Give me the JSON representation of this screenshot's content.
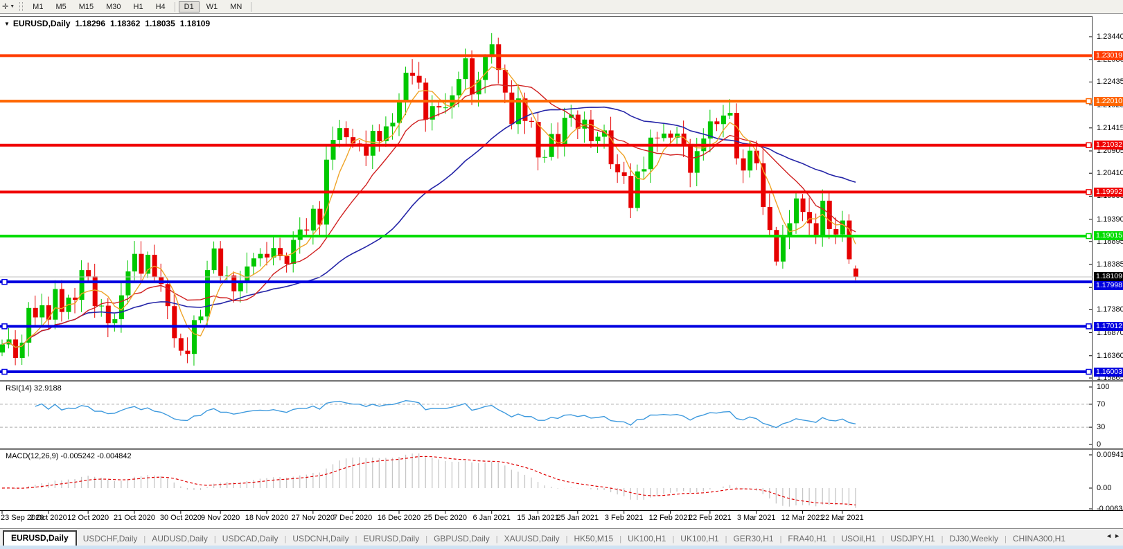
{
  "toolbar": {
    "cursor_tool": "✛",
    "timeframe_groups": [
      [
        "M1",
        "M5",
        "M15",
        "M30",
        "H1",
        "H4"
      ],
      [
        "D1",
        "W1",
        "MN"
      ]
    ],
    "selected_timeframe": "D1"
  },
  "title": {
    "dropdown": "▼",
    "symbol": "EURUSD,Daily",
    "open": "1.18296",
    "high": "1.18362",
    "low": "1.18035",
    "close": "1.18109"
  },
  "price_axis": {
    "ticks": [
      "1.23440",
      "1.22930",
      "1.22435",
      "1.21925",
      "1.21415",
      "1.20905",
      "1.20410",
      "1.19900",
      "1.19390",
      "1.18895",
      "1.18385",
      "1.17875",
      "1.17380",
      "1.16870",
      "1.16360",
      "1.15865"
    ]
  },
  "current_price": {
    "value": "1.18109",
    "line_color": "#C0C0C0",
    "label_bg": "#000000"
  },
  "hlines": [
    {
      "price": "1.23019",
      "color": "#FF3C00",
      "anchors": []
    },
    {
      "price": "1.22010",
      "color": "#FF6600",
      "anchors": [
        "right"
      ]
    },
    {
      "price": "1.21032",
      "color": "#F00000",
      "anchors": [
        "right"
      ]
    },
    {
      "price": "1.19992",
      "color": "#F00000",
      "anchors": [
        "right"
      ]
    },
    {
      "price": "1.19015",
      "color": "#00DC00",
      "anchors": [
        "right"
      ]
    },
    {
      "price": "1.17998",
      "color": "#0000E0",
      "anchors": [
        "left"
      ]
    },
    {
      "price": "1.17012",
      "color": "#0000E0",
      "anchors": [
        "left",
        "right"
      ]
    },
    {
      "price": "1.16003",
      "color": "#0000E0",
      "anchors": [
        "left",
        "right"
      ]
    }
  ],
  "dates": [
    "23 Sep 2020",
    "2 Oct 2020",
    "12 Oct 2020",
    "21 Oct 2020",
    "30 Oct 2020",
    "9 Nov 2020",
    "18 Nov 2020",
    "27 Nov 2020",
    "7 Dec 2020",
    "16 Dec 2020",
    "25 Dec 2020",
    "6 Jan 2021",
    "15 Jan 2021",
    "25 Jan 2021",
    "3 Feb 2021",
    "12 Feb 2021",
    "22 Feb 2021",
    "3 Mar 2021",
    "12 Mar 2021",
    "22 Mar 2021"
  ],
  "label_bar_indices": [
    0,
    7,
    13,
    20,
    27,
    33,
    40,
    47,
    53,
    60,
    67,
    74,
    81,
    87,
    94,
    101,
    107,
    114,
    121,
    127
  ],
  "candles": {
    "up_color": "#00C800",
    "down_color": "#E60000",
    "closes": [
      1.1661,
      1.1672,
      1.1631,
      1.1665,
      1.1742,
      1.1721,
      1.1748,
      1.1716,
      1.1784,
      1.1733,
      1.1765,
      1.176,
      1.1826,
      1.1812,
      1.1746,
      1.1747,
      1.1708,
      1.1717,
      1.177,
      1.1823,
      1.1862,
      1.1818,
      1.186,
      1.181,
      1.1795,
      1.1746,
      1.1675,
      1.1647,
      1.164,
      1.1715,
      1.1723,
      1.1826,
      1.1874,
      1.1813,
      1.1814,
      1.1779,
      1.1802,
      1.1834,
      1.1852,
      1.1862,
      1.1854,
      1.1875,
      1.1857,
      1.184,
      1.1893,
      1.1916,
      1.1914,
      1.1962,
      1.1927,
      1.2071,
      1.2115,
      1.2141,
      1.2121,
      1.2107,
      1.2106,
      1.208,
      1.2135,
      1.2112,
      1.2145,
      1.2153,
      1.2199,
      1.2264,
      1.2257,
      1.2242,
      1.216,
      1.219,
      1.2187,
      1.2187,
      1.2214,
      1.225,
      1.2296,
      1.2216,
      1.2248,
      1.2299,
      1.2327,
      1.227,
      1.222,
      1.215,
      1.2207,
      1.2157,
      1.2155,
      1.2076,
      1.2077,
      1.2128,
      1.2105,
      1.2164,
      1.2171,
      1.214,
      1.216,
      1.2112,
      1.2122,
      1.2136,
      1.2061,
      1.2043,
      1.2035,
      1.1964,
      1.2045,
      1.205,
      1.212,
      1.2119,
      1.2129,
      1.212,
      1.2129,
      1.2106,
      1.2042,
      1.209,
      1.2118,
      1.2156,
      1.215,
      1.2169,
      1.2175,
      1.2074,
      1.2047,
      1.2091,
      1.2063,
      1.1966,
      1.1915,
      1.1845,
      1.1899,
      1.193,
      1.1985,
      1.1955,
      1.193,
      1.1899,
      1.198,
      1.1917,
      1.1905,
      1.1936,
      1.185,
      1.18109
    ],
    "last_bar": {
      "open": 1.18296,
      "high": 1.18362,
      "low": 1.18035,
      "close": 1.18109
    }
  },
  "moving_averages": {
    "fast_color": "#EFA428",
    "mid_color": "#D02020",
    "slow_color": "#2626A8"
  },
  "rsi": {
    "name": "RSI(14)",
    "value": "32.9188",
    "period": 14,
    "scale": [
      "100",
      "70",
      "30",
      "0"
    ],
    "levels": [
      70,
      30
    ],
    "line_color": "#3E9ADE",
    "level_color": "#ABABAB"
  },
  "macd": {
    "name": "MACD(12,26,9)",
    "value": "-0.005242 -0.004842",
    "params": [
      12,
      26,
      9
    ],
    "scale": [
      "0.009412",
      "0.00",
      "-0.006386"
    ],
    "hist_color": "#C6C6C6",
    "signal_color": "#E00000"
  },
  "tabs": {
    "items": [
      {
        "label": "EURUSD,Daily",
        "active": true
      },
      {
        "label": "USDCHF,Daily",
        "active": false
      },
      {
        "label": "AUDUSD,Daily",
        "active": false
      },
      {
        "label": "USDCAD,Daily",
        "active": false
      },
      {
        "label": "USDCNH,Daily",
        "active": false
      },
      {
        "label": "EURUSD,Daily",
        "active": false
      },
      {
        "label": "GBPUSD,Daily",
        "active": false
      },
      {
        "label": "XAUUSD,Daily",
        "active": false
      },
      {
        "label": "HK50,M15",
        "active": false
      },
      {
        "label": "UK100,H1",
        "active": false
      },
      {
        "label": "UK100,H1",
        "active": false
      },
      {
        "label": "GER30,H1",
        "active": false
      },
      {
        "label": "FRA40,H1",
        "active": false
      },
      {
        "label": "USOil,H1",
        "active": false
      },
      {
        "label": "USDJPY,H1",
        "active": false
      },
      {
        "label": "DJ30,Weekly",
        "active": false
      },
      {
        "label": "CHINA300,H1",
        "active": false
      }
    ],
    "nav_left": "◄",
    "nav_right": "►"
  }
}
